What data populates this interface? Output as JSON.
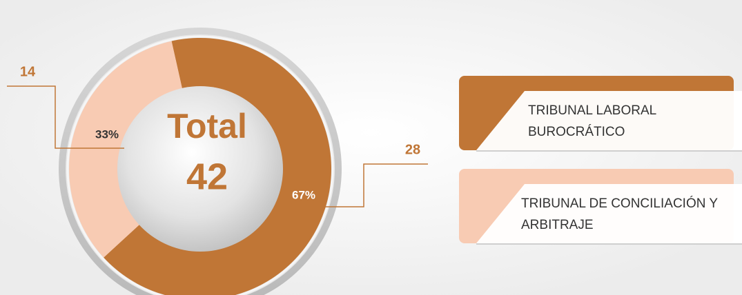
{
  "chart_data": {
    "type": "donut",
    "categories": [
      "TRIBUNAL LABORAL BUROCRÁTICO",
      "TRIBUNAL DE CONCILIACIÓN Y ARBITRAJE"
    ],
    "values": [
      28,
      14
    ],
    "percent_labels": [
      "67%",
      "33%"
    ],
    "colors": [
      "#c07636",
      "#f8cbb3"
    ],
    "center_label": "Total",
    "total": 42
  }
}
